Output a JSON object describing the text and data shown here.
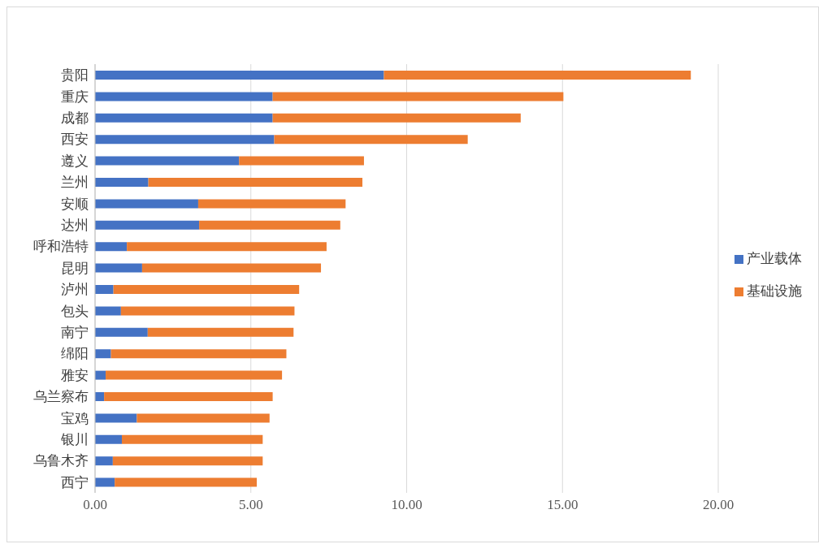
{
  "chart_data": {
    "type": "bar",
    "orientation": "horizontal",
    "stacked": true,
    "categories": [
      "贵阳",
      "重庆",
      "成都",
      "西安",
      "遵义",
      "兰州",
      "安顺",
      "达州",
      "呼和浩特",
      "昆明",
      "泸州",
      "包头",
      "南宁",
      "绵阳",
      "雅安",
      "乌兰察布",
      "宝鸡",
      "银川",
      "乌鲁木齐",
      "西宁"
    ],
    "series": [
      {
        "name": "产业载体",
        "color": "#4472c4",
        "values": [
          9.27,
          5.7,
          5.7,
          5.75,
          4.62,
          1.71,
          3.31,
          3.34,
          1.02,
          1.51,
          0.59,
          0.83,
          1.69,
          0.51,
          0.34,
          0.29,
          1.34,
          0.86,
          0.57,
          0.63
        ]
      },
      {
        "name": "基础设施",
        "color": "#ed7d31",
        "values": [
          9.85,
          9.33,
          7.96,
          6.21,
          4.01,
          6.87,
          4.73,
          4.53,
          6.41,
          5.74,
          5.96,
          5.57,
          4.68,
          5.63,
          5.66,
          5.41,
          4.26,
          4.52,
          4.81,
          4.56
        ]
      }
    ],
    "xlim": [
      0,
      20
    ],
    "xticks": [
      {
        "value": 0,
        "label": "0.00"
      },
      {
        "value": 5,
        "label": "5.00"
      },
      {
        "value": 10,
        "label": "10.00"
      },
      {
        "value": 15,
        "label": "15.00"
      },
      {
        "value": 20,
        "label": "20.00"
      }
    ],
    "grid": "x",
    "legend": "right"
  }
}
